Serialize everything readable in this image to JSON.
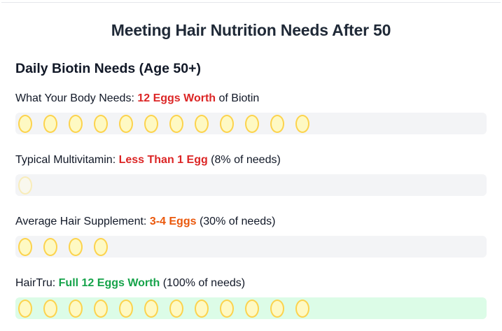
{
  "title": "Meeting Hair Nutrition Needs After 50",
  "subtitle": "Daily Biotin Needs (Age 50+)",
  "rows": [
    {
      "prefix": "What Your Body Needs: ",
      "highlight": "12 Eggs Worth",
      "suffix": " of Biotin",
      "highlight_color": "#dc2626",
      "eggs": 12
    },
    {
      "prefix": "Typical Multivitamin: ",
      "highlight": "Less Than 1 Egg",
      "suffix": " (8% of needs)",
      "highlight_color": "#dc2626",
      "eggs": 1
    },
    {
      "prefix": "Average Hair Supplement: ",
      "highlight": "3-4 Eggs",
      "suffix": " (30% of needs)",
      "highlight_color": "#ea580c",
      "eggs": 4
    },
    {
      "prefix": "HairTru: ",
      "highlight": "Full 12 Eggs Worth",
      "suffix": " (100% of needs)",
      "highlight_color": "#16a34a",
      "eggs": 12
    }
  ]
}
